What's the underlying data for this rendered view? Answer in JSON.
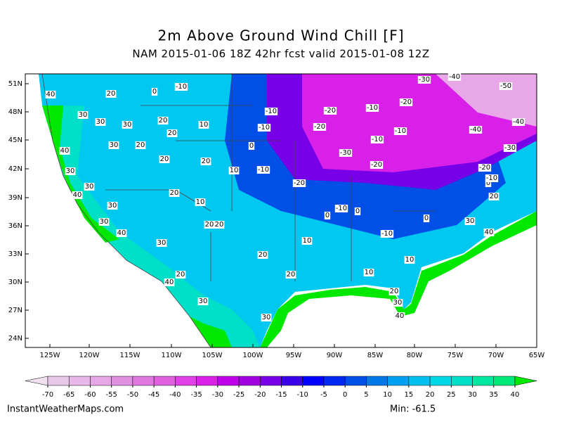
{
  "title": "2m Above Ground Wind Chill [F]",
  "subtitle": "NAM 2015-01-06 18Z 42hr fcst valid 2015-01-08 12Z",
  "latitudes": [
    "51N",
    "48N",
    "45N",
    "42N",
    "39N",
    "36N",
    "33N",
    "30N",
    "27N",
    "24N"
  ],
  "longitudes": [
    "125W",
    "120W",
    "115W",
    "110W",
    "105W",
    "100W",
    "95W",
    "90W",
    "85W",
    "80W",
    "75W",
    "70W",
    "65W"
  ],
  "contour_labels": [
    40,
    20,
    0,
    -10,
    30,
    30,
    30,
    20,
    20,
    10,
    40,
    30,
    20,
    20,
    20,
    10,
    30,
    30,
    40,
    20,
    10,
    30,
    30,
    40,
    20,
    20,
    30,
    20,
    40,
    30,
    30,
    20,
    20,
    10,
    10,
    20,
    30,
    40,
    10,
    -10,
    0,
    30,
    40,
    20,
    0,
    -10,
    -20,
    0,
    -10,
    0,
    -20,
    -10,
    0,
    -10,
    -10,
    -20,
    -20,
    -10,
    -20,
    -10,
    -10,
    -30,
    -20,
    -30,
    -40,
    -50,
    -40,
    -40,
    -30
  ],
  "colorbar": {
    "ticks": [
      -70,
      -65,
      -60,
      -55,
      -50,
      -45,
      -40,
      -35,
      -30,
      -25,
      -20,
      -15,
      -10,
      -5,
      0,
      5,
      10,
      15,
      20,
      25,
      30,
      35,
      40
    ],
    "colors": [
      "#f0e0f0",
      "#e8c8e8",
      "#e8b8e8",
      "#e8a8e8",
      "#e090e0",
      "#e078e0",
      "#e060e0",
      "#e040e8",
      "#d820e8",
      "#c000e8",
      "#a000e0",
      "#7800e8",
      "#3c00e8",
      "#0000ff",
      "#0028f0",
      "#0050e8",
      "#0078e8",
      "#00a0f0",
      "#00c0f0",
      "#00d8e8",
      "#00e0c8",
      "#00e8a0",
      "#00e878",
      "#00e800"
    ]
  },
  "footer": {
    "site": "InstantWeatherMaps.com",
    "min": "Min: -61.5"
  }
}
